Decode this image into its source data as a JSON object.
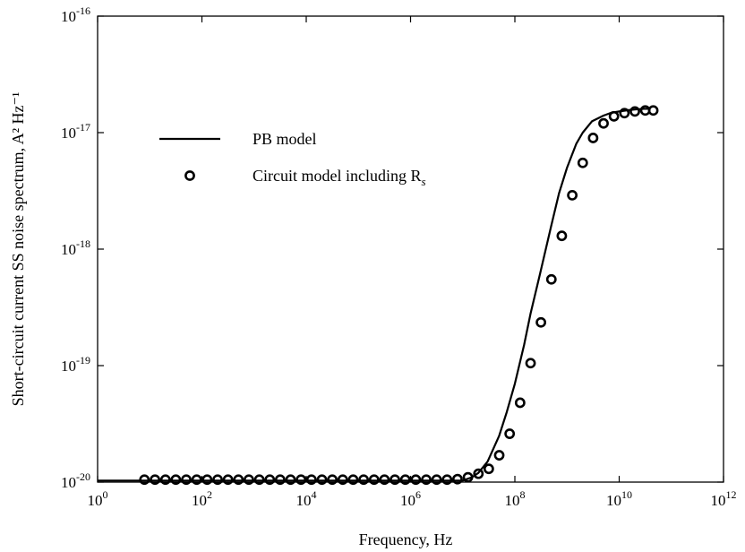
{
  "chart_data": {
    "type": "line",
    "xlabel": "Frequency, Hz",
    "ylabel": "Short-circuit current SS noise spectrum, A² Hz⁻¹",
    "xscale": "log",
    "yscale": "log",
    "xlim": [
      1,
      1000000000000.0
    ],
    "ylim": [
      1e-20,
      1e-16
    ],
    "grid": false,
    "legend_placement": "upper-left",
    "x_ticks": [
      {
        "value": 1,
        "base": "10",
        "exp": "0"
      },
      {
        "value": 100,
        "base": "10",
        "exp": "2"
      },
      {
        "value": 10000,
        "base": "10",
        "exp": "4"
      },
      {
        "value": 1000000,
        "base": "10",
        "exp": "6"
      },
      {
        "value": 100000000,
        "base": "10",
        "exp": "8"
      },
      {
        "value": 10000000000,
        "base": "10",
        "exp": "10"
      },
      {
        "value": 1000000000000,
        "base": "10",
        "exp": "12"
      }
    ],
    "y_ticks": [
      {
        "value": 1e-20,
        "base": "10",
        "exp": "-20"
      },
      {
        "value": 1e-19,
        "base": "10",
        "exp": "-19"
      },
      {
        "value": 1e-18,
        "base": "10",
        "exp": "-18"
      },
      {
        "value": 1e-17,
        "base": "10",
        "exp": "-17"
      },
      {
        "value": 1e-16,
        "base": "10",
        "exp": "-16"
      }
    ],
    "series": [
      {
        "name": "PB model",
        "style": "solid-line",
        "color": "#000000",
        "x": [
          10000000.0,
          15000000.0,
          20000000.0,
          30000000.0,
          50000000.0,
          70000000.0,
          100000000.0,
          150000000.0,
          200000000.0,
          300000000.0,
          500000000.0,
          700000000.0,
          1000000000.0,
          1500000000.0,
          2000000000.0,
          3000000000.0,
          5000000000.0,
          7000000000.0,
          10000000000.0,
          15000000000.0,
          20000000000.0,
          30000000000.0,
          40000000000.0
        ],
        "y": [
          1.03e-20,
          1.1e-20,
          1.2e-20,
          1.5e-20,
          2.5e-20,
          4e-20,
          7e-20,
          1.5e-19,
          2.8e-19,
          6e-19,
          1.6e-18,
          3e-18,
          5e-18,
          8e-18,
          1e-17,
          1.25e-17,
          1.4e-17,
          1.48e-17,
          1.52e-17,
          1.56e-17,
          1.58e-17,
          1.6e-17,
          1.6e-17
        ]
      },
      {
        "name": "Circuit model including R",
        "name_subscript": "s",
        "style": "open-circle",
        "color": "#000000",
        "x": [
          7.9,
          12.6,
          20,
          31.6,
          50.1,
          79.4,
          126,
          200,
          316,
          501,
          794,
          1260,
          2000,
          3160,
          5010,
          7940,
          12600,
          20000,
          31600,
          50100,
          79400,
          126000,
          200000,
          316000,
          501000,
          794000,
          1260000,
          2000000,
          3160000,
          5010000,
          7940000,
          12600000,
          20000000,
          31600000,
          50100000,
          79400000,
          126000000,
          200000000,
          316000000,
          501000000,
          794000000,
          1260000000,
          2000000000,
          3160000000,
          5010000000,
          7940000000,
          12600000000,
          20000000000,
          31600000000,
          45000000000
        ],
        "y": [
          1.05e-20,
          1.05e-20,
          1.05e-20,
          1.05e-20,
          1.05e-20,
          1.05e-20,
          1.05e-20,
          1.05e-20,
          1.05e-20,
          1.05e-20,
          1.05e-20,
          1.05e-20,
          1.05e-20,
          1.05e-20,
          1.05e-20,
          1.05e-20,
          1.05e-20,
          1.05e-20,
          1.05e-20,
          1.05e-20,
          1.05e-20,
          1.05e-20,
          1.05e-20,
          1.05e-20,
          1.05e-20,
          1.05e-20,
          1.05e-20,
          1.05e-20,
          1.05e-20,
          1.05e-20,
          1.06e-20,
          1.1e-20,
          1.18e-20,
          1.3e-20,
          1.7e-20,
          2.6e-20,
          4.8e-20,
          1.05e-19,
          2.35e-19,
          5.5e-19,
          1.3e-18,
          2.9e-18,
          5.5e-18,
          9e-18,
          1.2e-17,
          1.38e-17,
          1.47e-17,
          1.52e-17,
          1.55e-17,
          1.55e-17
        ]
      }
    ]
  }
}
